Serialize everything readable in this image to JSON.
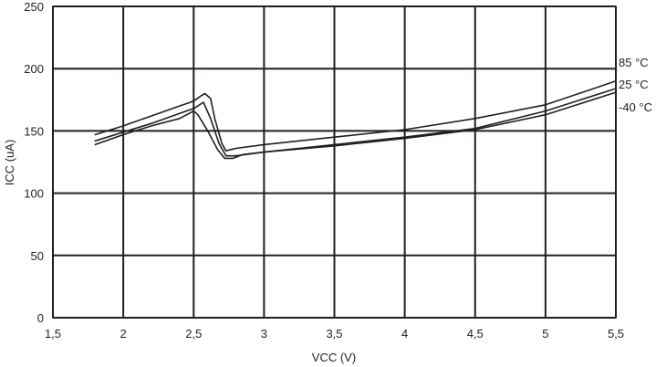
{
  "chart_data": {
    "type": "line",
    "title": "",
    "xlabel": "VCC (V)",
    "ylabel": "ICC (uA)",
    "xlim": [
      1.5,
      5.5
    ],
    "ylim": [
      0,
      250
    ],
    "x_ticks": [
      "1,5",
      "2",
      "2,5",
      "3",
      "3,5",
      "4",
      "4,5",
      "5",
      "5,5"
    ],
    "x_tick_values": [
      1.5,
      2,
      2.5,
      3,
      3.5,
      4,
      4.5,
      5,
      5.5
    ],
    "y_ticks": [
      "0",
      "50",
      "100",
      "150",
      "200",
      "250"
    ],
    "y_tick_values": [
      0,
      50,
      100,
      150,
      200,
      250
    ],
    "grid": true,
    "colors": {
      "line": "#231f20",
      "grid": "#231f20",
      "background": "#ffffff"
    },
    "series": [
      {
        "name": "85 °C",
        "points": [
          [
            1.8,
            147
          ],
          [
            2.0,
            154
          ],
          [
            2.2,
            162
          ],
          [
            2.4,
            170
          ],
          [
            2.5,
            174
          ],
          [
            2.55,
            178
          ],
          [
            2.58,
            180
          ],
          [
            2.62,
            176
          ],
          [
            2.65,
            160
          ],
          [
            2.7,
            140
          ],
          [
            2.73,
            134
          ],
          [
            2.8,
            136
          ],
          [
            3.0,
            139
          ],
          [
            3.5,
            145
          ],
          [
            4.0,
            151
          ],
          [
            4.5,
            160
          ],
          [
            5.0,
            171
          ],
          [
            5.5,
            190
          ]
        ]
      },
      {
        "name": "25 °C",
        "points": [
          [
            1.8,
            142
          ],
          [
            2.0,
            149
          ],
          [
            2.2,
            156
          ],
          [
            2.4,
            164
          ],
          [
            2.5,
            168
          ],
          [
            2.53,
            170
          ],
          [
            2.57,
            173
          ],
          [
            2.62,
            160
          ],
          [
            2.68,
            140
          ],
          [
            2.73,
            130
          ],
          [
            2.8,
            130
          ],
          [
            3.0,
            133
          ],
          [
            3.5,
            139
          ],
          [
            4.0,
            145
          ],
          [
            4.5,
            152
          ],
          [
            5.0,
            166
          ],
          [
            5.5,
            184
          ]
        ]
      },
      {
        "name": "-40 °C",
        "points": [
          [
            1.8,
            139
          ],
          [
            2.0,
            147
          ],
          [
            2.2,
            154
          ],
          [
            2.4,
            160
          ],
          [
            2.5,
            166
          ],
          [
            2.53,
            163
          ],
          [
            2.6,
            150
          ],
          [
            2.67,
            135
          ],
          [
            2.72,
            128
          ],
          [
            2.78,
            128
          ],
          [
            2.85,
            131
          ],
          [
            3.0,
            133
          ],
          [
            3.5,
            138
          ],
          [
            4.0,
            144
          ],
          [
            4.5,
            151
          ],
          [
            5.0,
            163
          ],
          [
            5.5,
            181
          ]
        ]
      }
    ]
  }
}
